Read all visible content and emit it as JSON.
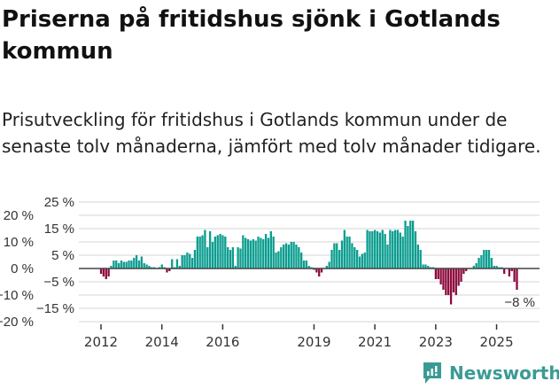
{
  "title": "Priserna på fritidshus sjönk i Gotlands kommun",
  "subtitle": "Prisutveckling för fritidshus i Gotlands kommun under de senaste tolv månaderna, jämfört med tolv månader tidigare.",
  "brand": "Newsworthy",
  "colors": {
    "positive": "#0a9d8f",
    "negative": "#8c0a3c",
    "grid": "#dddddd",
    "zero": "#444444",
    "brand": "#3a9b94"
  },
  "chart_data": {
    "type": "bar",
    "title": "Priserna på fritidshus sjönk i Gotlands kommun",
    "xlabel": "",
    "ylabel": "",
    "start": "2012-01",
    "frequency": "monthly",
    "ylim": [
      -20,
      25
    ],
    "yticks": [
      25,
      20,
      15,
      10,
      5,
      0,
      -5,
      -10,
      -15,
      -20
    ],
    "ytick_labels": [
      "25 %",
      "20 %",
      "15 %",
      "10 %",
      "5 %",
      "0 %",
      "−5 %",
      "−10 %",
      "−15 %",
      "−20 %"
    ],
    "xticks": [
      {
        "year": 2012,
        "label": "2012"
      },
      {
        "year": 2014,
        "label": "2014"
      },
      {
        "year": 2016,
        "label": "2016"
      },
      {
        "year": 2019,
        "label": "2019"
      },
      {
        "year": 2021,
        "label": "2021"
      },
      {
        "year": 2023,
        "label": "2023"
      },
      {
        "year": 2025,
        "label": "2025"
      }
    ],
    "grid": true,
    "last_value_label": "−8 %",
    "values": [
      -2,
      -3,
      -4,
      -3,
      1,
      3,
      3,
      2,
      3,
      2.5,
      2.5,
      3,
      3,
      4,
      5,
      3,
      4.5,
      2,
      1.5,
      1,
      0.5,
      0.5,
      0,
      0.5,
      1.5,
      0.5,
      -1.5,
      -1,
      3.5,
      0.5,
      3.5,
      1,
      5,
      5,
      6,
      5.5,
      4,
      7,
      12,
      12,
      12.5,
      14.5,
      8,
      14,
      10,
      12,
      12.5,
      13,
      12.5,
      12,
      8,
      7,
      8,
      1,
      8,
      7.5,
      12.5,
      11.5,
      11,
      10.5,
      11,
      10.5,
      12,
      11.5,
      11,
      13,
      11.5,
      14,
      12,
      6,
      6.5,
      8,
      9,
      9.5,
      9,
      10,
      10,
      9,
      8,
      6,
      3,
      3,
      1,
      0.5,
      -0.5,
      -1.5,
      -3,
      -1.5,
      0,
      1,
      2.5,
      7,
      9.5,
      9.5,
      7,
      10.5,
      14.5,
      12,
      12,
      9.5,
      8,
      7,
      4.5,
      5.5,
      6,
      14.5,
      14,
      14,
      14.5,
      14,
      13.5,
      14.5,
      13,
      9,
      14.5,
      14,
      14.5,
      14.5,
      13.5,
      12,
      18,
      16,
      18,
      18,
      14,
      9,
      7,
      1.5,
      1.5,
      1,
      0.5,
      0.5,
      -4,
      -4,
      -6,
      -8,
      -10,
      -10,
      -13.5,
      -9,
      -10,
      -6.5,
      -5,
      -2,
      -1,
      0,
      0,
      1,
      2,
      4,
      5,
      7,
      7,
      7,
      4,
      1,
      1,
      0.5,
      0.5,
      -2,
      0,
      -3,
      -1,
      -5,
      -8
    ]
  }
}
